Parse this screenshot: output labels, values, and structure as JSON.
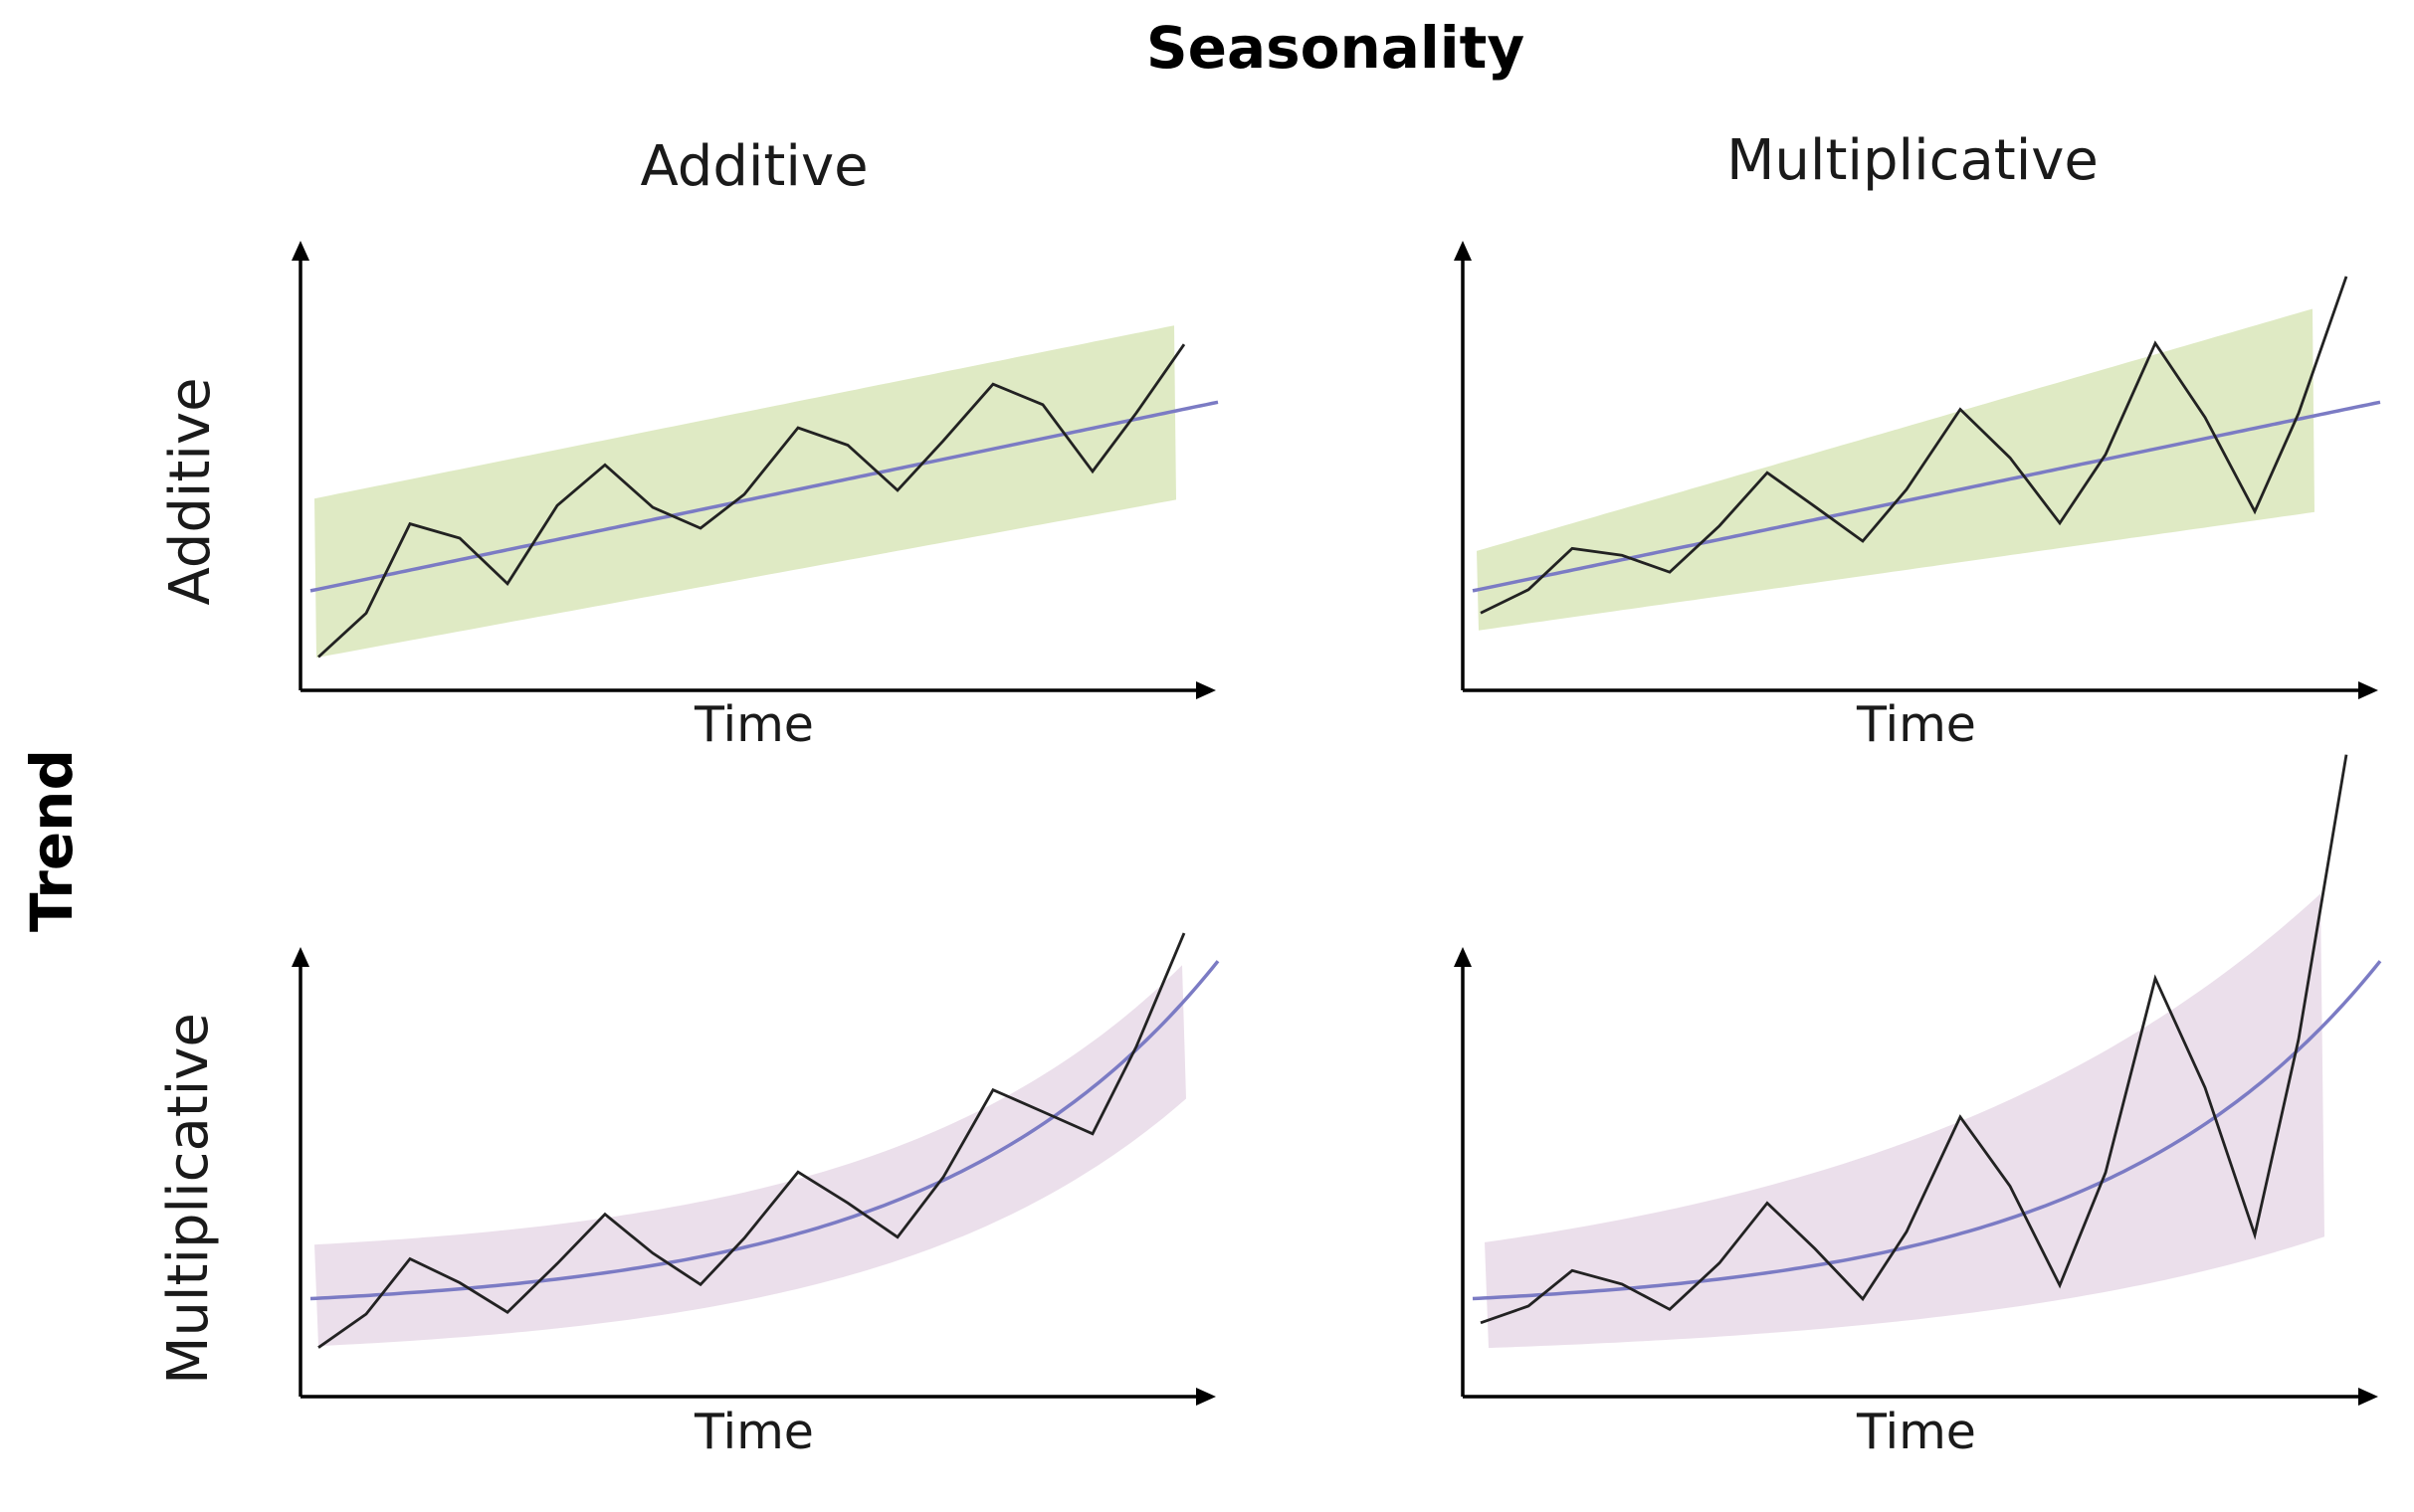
{
  "title": "Seasonality",
  "row_axis_title": "Trend",
  "column_labels": [
    "Additive",
    "Multiplicative"
  ],
  "row_labels": [
    "Additive",
    "Multiplicative"
  ],
  "colors": {
    "linear_trend_band": "#dfeac4",
    "exponential_trend_band": "#ebdfeb",
    "trend_line": "#7b7bc4",
    "series_line": "#222222",
    "axis": "#000000"
  },
  "panels": [
    {
      "row": "Additive",
      "column": "Additive",
      "trend": "linear",
      "seasonality": "additive",
      "x_label": "Time"
    },
    {
      "row": "Additive",
      "column": "Multiplicative",
      "trend": "linear",
      "seasonality": "multiplicative",
      "x_label": "Time"
    },
    {
      "row": "Multiplicative",
      "column": "Additive",
      "trend": "exponential",
      "seasonality": "additive",
      "x_label": "Time"
    },
    {
      "row": "Multiplicative",
      "column": "Multiplicative",
      "trend": "exponential",
      "seasonality": "multiplicative",
      "x_label": "Time"
    }
  ]
}
